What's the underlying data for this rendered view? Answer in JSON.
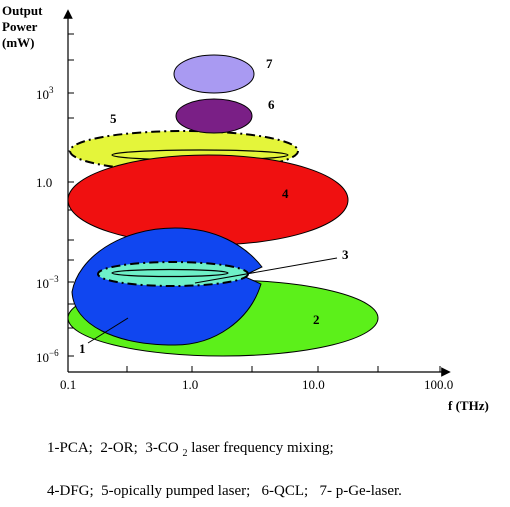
{
  "axes": {
    "y_title_lines": [
      "Output",
      "Power",
      "(mW)"
    ],
    "x_title": "f (THz)",
    "y_ticks": [
      {
        "base": "10",
        "exp": "3"
      },
      {
        "base": "1.0",
        "exp": ""
      },
      {
        "base": "10",
        "exp": "−3"
      },
      {
        "base": "10",
        "exp": "−6"
      }
    ],
    "x_ticks": [
      "0.1",
      "1.0",
      "10.0",
      "100.0"
    ]
  },
  "regions": {
    "pca": {
      "number": "1",
      "color": "#1046f0"
    },
    "or": {
      "number": "2",
      "color": "#5cf01a"
    },
    "co2": {
      "number": "3",
      "color": "#6ef0c8"
    },
    "dfg": {
      "number": "4",
      "color": "#f01010"
    },
    "optically_pumped": {
      "number": "5",
      "color": "#e4f53a"
    },
    "qcl": {
      "number": "6",
      "color": "#7a1f86"
    },
    "pge": {
      "number": "7",
      "color": "#a99af2"
    }
  },
  "legend": {
    "line1": {
      "pca": "1-PCA;",
      "or": "2-OR;",
      "co2_prefix": "3-CO",
      "co2_sub": "2",
      "co2_suffix": "laser frequency mixing;"
    },
    "line2": {
      "dfg": "4-DFG;",
      "optically_pumped": "5-opically pumped laser;",
      "qcl": "6-QCL;",
      "pge": "7- p-Ge-laser."
    }
  }
}
